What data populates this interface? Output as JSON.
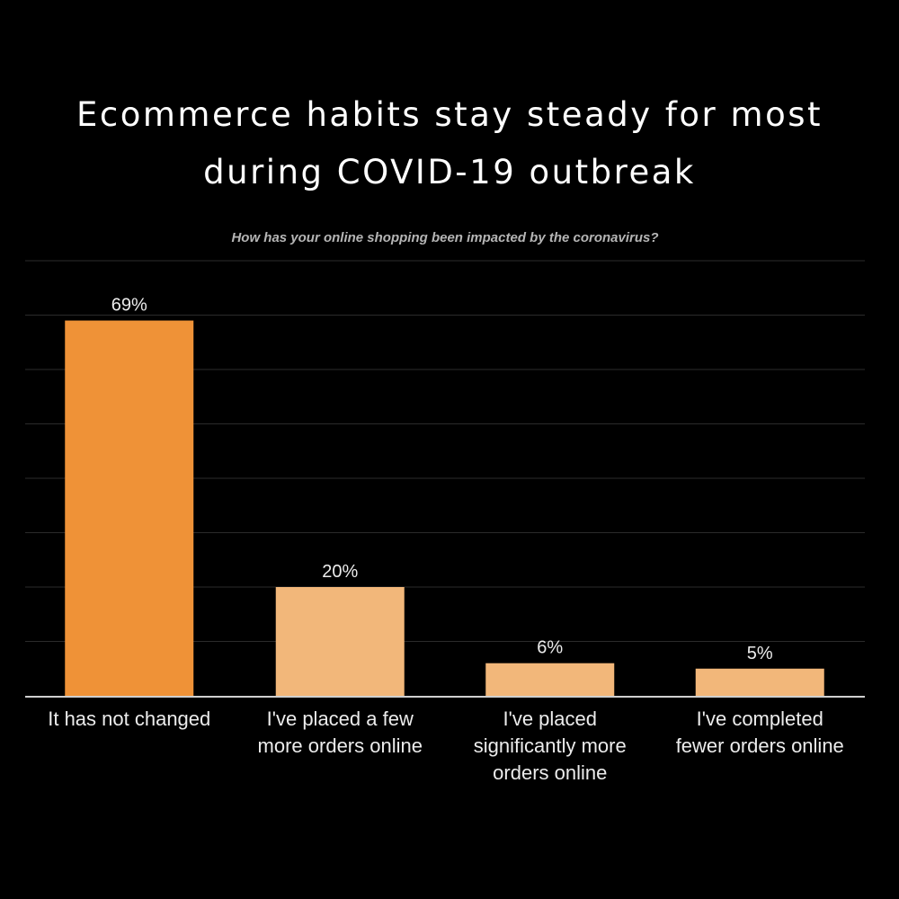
{
  "page_title": {
    "line1": "Ecommerce habits stay steady for most",
    "line2": "during COVID-19 outbreak"
  },
  "chart_data": {
    "type": "bar",
    "title": "How has your online shopping been impacted by the coronavirus?",
    "xlabel": "",
    "ylabel": "",
    "ylim": [
      0,
      80
    ],
    "grid": true,
    "categories": [
      [
        "It has not changed"
      ],
      [
        "I've placed a few",
        "more orders online"
      ],
      [
        "I've placed",
        "significantly more",
        "orders online"
      ],
      [
        "I've completed",
        "fewer orders online"
      ]
    ],
    "values": [
      69,
      20,
      6,
      5
    ],
    "value_labels": [
      "69%",
      "20%",
      "6%",
      "5%"
    ],
    "colors": [
      "#ef9237",
      "#f2b77a",
      "#f2b77a",
      "#f2b77a"
    ]
  }
}
